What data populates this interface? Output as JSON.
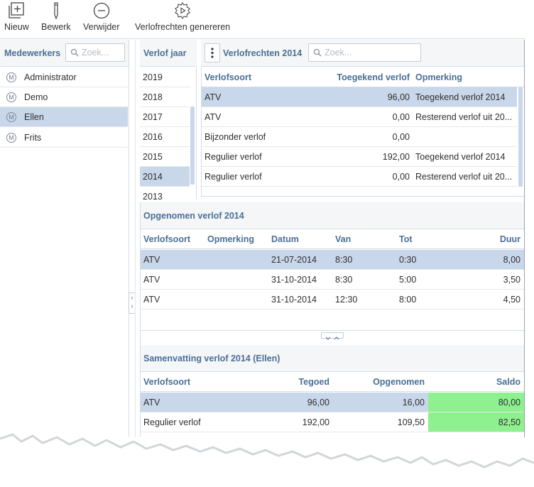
{
  "toolbar": {
    "new_label": "Nieuw",
    "edit_label": "Bewerk",
    "delete_label": "Verwijder",
    "generate_label": "Verlofrechten genereren"
  },
  "employees": {
    "title": "Medewerkers",
    "search_placeholder": "Zoek...",
    "items": [
      {
        "label": "Administrator",
        "icon": "M"
      },
      {
        "label": "Demo",
        "icon": "M"
      },
      {
        "label": "Ellen",
        "icon": "M"
      },
      {
        "label": "Frits",
        "icon": "M"
      }
    ],
    "selected_index": 2
  },
  "years": {
    "title": "Verlof jaar",
    "items": [
      "2019",
      "2018",
      "2017",
      "2016",
      "2015",
      "2014",
      "2013"
    ],
    "selected": "2014"
  },
  "rights": {
    "menu_icon": "vertical-dots-icon",
    "title": "Verlofrechten 2014",
    "search_placeholder": "Zoek...",
    "columns": [
      "Verlofsoort",
      "Toegekend verlof",
      "Opmerking"
    ],
    "rows": [
      [
        "ATV",
        "96,00",
        "Toegekend verlof 2014"
      ],
      [
        "ATV",
        "0,00",
        "Resterend verlof uit 20..."
      ],
      [
        "Bijzonder verlof",
        "0,00",
        ""
      ],
      [
        "Regulier verlof",
        "192,00",
        "Toegekend verlof 2014"
      ],
      [
        "Regulier verlof",
        "0,00",
        "Resterend verlof uit 20..."
      ]
    ]
  },
  "taken": {
    "title": "Opgenomen verlof 2014",
    "columns": [
      "Verlofsoort",
      "Opmerking",
      "Datum",
      "Van",
      "Tot",
      "Duur"
    ],
    "rows": [
      [
        "ATV",
        "",
        "21-07-2014",
        "8:30",
        "0:30",
        "8,00"
      ],
      [
        "ATV",
        "",
        "31-10-2014",
        "8:30",
        "5:00",
        "3,50"
      ],
      [
        "ATV",
        "",
        "31-10-2014",
        "12:30",
        "8:00",
        "4,50"
      ]
    ]
  },
  "summary": {
    "title": "Samenvatting verlof 2014 (Ellen)",
    "columns": [
      "Verlofsoort",
      "Tegoed",
      "Opgenomen",
      "Saldo"
    ],
    "rows": [
      [
        "ATV",
        "96,00",
        "16,00",
        "80,00"
      ],
      [
        "Regulier verlof",
        "192,00",
        "109,50",
        "82,50"
      ]
    ],
    "saldo_color": "#8ef08e"
  },
  "colors": {
    "accent": "#4a6f96",
    "selection": "#c9d7ea"
  }
}
